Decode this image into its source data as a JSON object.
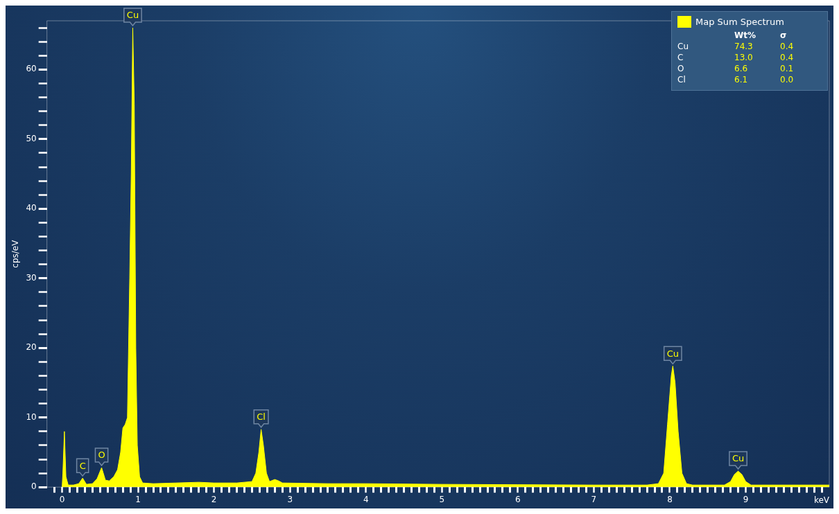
{
  "chart_data": {
    "type": "area",
    "xlabel": "keV",
    "ylabel": "cps/eV",
    "grid": false,
    "legend": "top right",
    "marker": "none",
    "series": [
      {
        "name": "Map Sum Spectrum",
        "color": "#ffff00",
        "x": [
          0.0,
          0.01,
          0.03,
          0.05,
          0.08,
          0.15,
          0.22,
          0.27,
          0.32,
          0.4,
          0.46,
          0.52,
          0.57,
          0.62,
          0.68,
          0.73,
          0.77,
          0.8,
          0.83,
          0.86,
          0.89,
          0.91,
          0.93,
          0.95,
          0.97,
          0.99,
          1.02,
          1.06,
          1.2,
          1.5,
          1.8,
          2.0,
          2.3,
          2.5,
          2.55,
          2.59,
          2.62,
          2.65,
          2.69,
          2.73,
          2.8,
          2.85,
          2.9,
          3.5,
          4.0,
          5.0,
          6.0,
          7.0,
          7.7,
          7.85,
          7.92,
          7.97,
          8.02,
          8.04,
          8.07,
          8.11,
          8.16,
          8.22,
          8.3,
          8.72,
          8.8,
          8.85,
          8.9,
          8.95,
          9.0,
          9.07,
          10.1
        ],
        "values": [
          0,
          2,
          8,
          1.5,
          0.3,
          0.3,
          0.5,
          1.3,
          0.4,
          0.5,
          1.2,
          2.8,
          1.0,
          0.9,
          1.5,
          2.5,
          5,
          8.5,
          9,
          10,
          30,
          45,
          66,
          55,
          20,
          6,
          1.5,
          0.6,
          0.5,
          0.6,
          0.7,
          0.6,
          0.6,
          0.8,
          2,
          5,
          8.3,
          6,
          2,
          0.8,
          1.1,
          0.9,
          0.6,
          0.5,
          0.5,
          0.4,
          0.35,
          0.3,
          0.3,
          0.5,
          2,
          9,
          16,
          17.4,
          15,
          8,
          2,
          0.5,
          0.3,
          0.3,
          0.8,
          1.8,
          2.3,
          1.8,
          0.8,
          0.3,
          0.3
        ]
      }
    ],
    "xlim": [
      -0.2,
      10.1
    ],
    "xticks": [
      {
        "value": -0.1,
        "label": null
      },
      0,
      {
        "value": 0.1,
        "label": null
      },
      {
        "value": 0.2,
        "label": null
      },
      {
        "value": 0.3,
        "label": null
      },
      {
        "value": 0.4,
        "label": null
      },
      {
        "value": 0.5,
        "label": null
      },
      {
        "value": 0.6,
        "label": null
      },
      {
        "value": 0.7,
        "label": null
      },
      {
        "value": 0.8,
        "label": null
      },
      {
        "value": 0.9,
        "label": null
      },
      1,
      {
        "value": 1.1,
        "label": null
      },
      {
        "value": 1.2,
        "label": null
      },
      {
        "value": 1.3,
        "label": null
      },
      {
        "value": 1.4,
        "label": null
      },
      {
        "value": 1.5,
        "label": null
      },
      {
        "value": 1.6,
        "label": null
      },
      {
        "value": 1.7,
        "label": null
      },
      {
        "value": 1.8,
        "label": null
      },
      {
        "value": 1.9,
        "label": null
      },
      2,
      {
        "value": 2.1,
        "label": null
      },
      {
        "value": 2.2,
        "label": null
      },
      {
        "value": 2.3,
        "label": null
      },
      {
        "value": 2.4,
        "label": null
      },
      {
        "value": 2.5,
        "label": null
      },
      {
        "value": 2.6,
        "label": null
      },
      {
        "value": 2.7,
        "label": null
      },
      {
        "value": 2.8,
        "label": null
      },
      {
        "value": 2.9,
        "label": null
      },
      3,
      {
        "value": 3.1,
        "label": null
      },
      {
        "value": 3.2,
        "label": null
      },
      {
        "value": 3.3,
        "label": null
      },
      {
        "value": 3.4,
        "label": null
      },
      {
        "value": 3.5,
        "label": null
      },
      {
        "value": 3.6,
        "label": null
      },
      {
        "value": 3.7,
        "label": null
      },
      {
        "value": 3.8,
        "label": null
      },
      {
        "value": 3.9,
        "label": null
      },
      4,
      {
        "value": 4.1,
        "label": null
      },
      {
        "value": 4.2,
        "label": null
      },
      {
        "value": 4.3,
        "label": null
      },
      {
        "value": 4.4,
        "label": null
      },
      {
        "value": 4.5,
        "label": null
      },
      {
        "value": 4.6,
        "label": null
      },
      {
        "value": 4.7,
        "label": null
      },
      {
        "value": 4.8,
        "label": null
      },
      {
        "value": 4.9,
        "label": null
      },
      5,
      {
        "value": 5.1,
        "label": null
      },
      {
        "value": 5.2,
        "label": null
      },
      {
        "value": 5.3,
        "label": null
      },
      {
        "value": 5.4,
        "label": null
      },
      {
        "value": 5.5,
        "label": null
      },
      {
        "value": 5.6,
        "label": null
      },
      {
        "value": 5.7,
        "label": null
      },
      {
        "value": 5.8,
        "label": null
      },
      {
        "value": 5.9,
        "label": null
      },
      6,
      {
        "value": 6.1,
        "label": null
      },
      {
        "value": 6.2,
        "label": null
      },
      {
        "value": 6.3,
        "label": null
      },
      {
        "value": 6.4,
        "label": null
      },
      {
        "value": 6.5,
        "label": null
      },
      {
        "value": 6.6,
        "label": null
      },
      {
        "value": 6.7,
        "label": null
      },
      {
        "value": 6.8,
        "label": null
      },
      {
        "value": 6.9,
        "label": null
      },
      7,
      {
        "value": 7.1,
        "label": null
      },
      {
        "value": 7.2,
        "label": null
      },
      {
        "value": 7.3,
        "label": null
      },
      {
        "value": 7.4,
        "label": null
      },
      {
        "value": 7.5,
        "label": null
      },
      {
        "value": 7.6,
        "label": null
      },
      {
        "value": 7.7,
        "label": null
      },
      {
        "value": 7.8,
        "label": null
      },
      {
        "value": 7.9,
        "label": null
      },
      8,
      {
        "value": 8.1,
        "label": null
      },
      {
        "value": 8.2,
        "label": null
      },
      {
        "value": 8.3,
        "label": null
      },
      {
        "value": 8.4,
        "label": null
      },
      {
        "value": 8.5,
        "label": null
      },
      {
        "value": 8.6,
        "label": null
      },
      {
        "value": 8.7,
        "label": null
      },
      {
        "value": 8.8,
        "label": null
      },
      {
        "value": 8.9,
        "label": null
      },
      9,
      {
        "value": 9.1,
        "label": null
      },
      {
        "value": 9.2,
        "label": null
      },
      {
        "value": 9.3,
        "label": null
      },
      {
        "value": 9.4,
        "label": null
      },
      {
        "value": 9.5,
        "label": null
      },
      {
        "value": 9.6,
        "label": null
      },
      {
        "value": 9.7,
        "label": null
      },
      {
        "value": 9.8,
        "label": null
      },
      {
        "value": 9.9,
        "label": null
      },
      {
        "value": 10,
        "label": null
      }
    ],
    "ylim": [
      0,
      67
    ],
    "yticks": [
      0,
      {
        "value": 2,
        "label": null
      },
      {
        "value": 4,
        "label": null
      },
      {
        "value": 6,
        "label": null
      },
      {
        "value": 8,
        "label": null
      },
      10,
      {
        "value": 12,
        "label": null
      },
      {
        "value": 14,
        "label": null
      },
      {
        "value": 16,
        "label": null
      },
      {
        "value": 18,
        "label": null
      },
      20,
      {
        "value": 22,
        "label": null
      },
      {
        "value": 24,
        "label": null
      },
      {
        "value": 26,
        "label": null
      },
      {
        "value": 28,
        "label": null
      },
      30,
      {
        "value": 32,
        "label": null
      },
      {
        "value": 34,
        "label": null
      },
      {
        "value": 36,
        "label": null
      },
      {
        "value": 38,
        "label": null
      },
      40,
      {
        "value": 42,
        "label": null
      },
      {
        "value": 44,
        "label": null
      },
      {
        "value": 46,
        "label": null
      },
      {
        "value": 48,
        "label": null
      },
      50,
      {
        "value": 52,
        "label": null
      },
      {
        "value": 54,
        "label": null
      },
      {
        "value": 56,
        "label": null
      },
      {
        "value": 58,
        "label": null
      },
      60,
      {
        "value": 62,
        "label": null
      },
      {
        "value": 64,
        "label": null
      },
      {
        "value": 66,
        "label": null
      }
    ],
    "annotations": [
      {
        "text": "C",
        "x": 0.27,
        "y": 1.3
      },
      {
        "text": "O",
        "x": 0.52,
        "y": 2.8
      },
      {
        "text": "Cu",
        "x": 0.93,
        "y": 66
      },
      {
        "text": "Cl",
        "x": 2.62,
        "y": 8.3
      },
      {
        "text": "Cu",
        "x": 8.04,
        "y": 17.4
      },
      {
        "text": "Cu",
        "x": 8.9,
        "y": 2.3
      },
      "Wt%",
      "σ",
      "Cu",
      "74.3",
      "0.4",
      "C",
      "13.0",
      "0.4",
      "O",
      "6.6",
      "0.1",
      "Cl",
      "6.1",
      "0.0"
    ]
  }
}
